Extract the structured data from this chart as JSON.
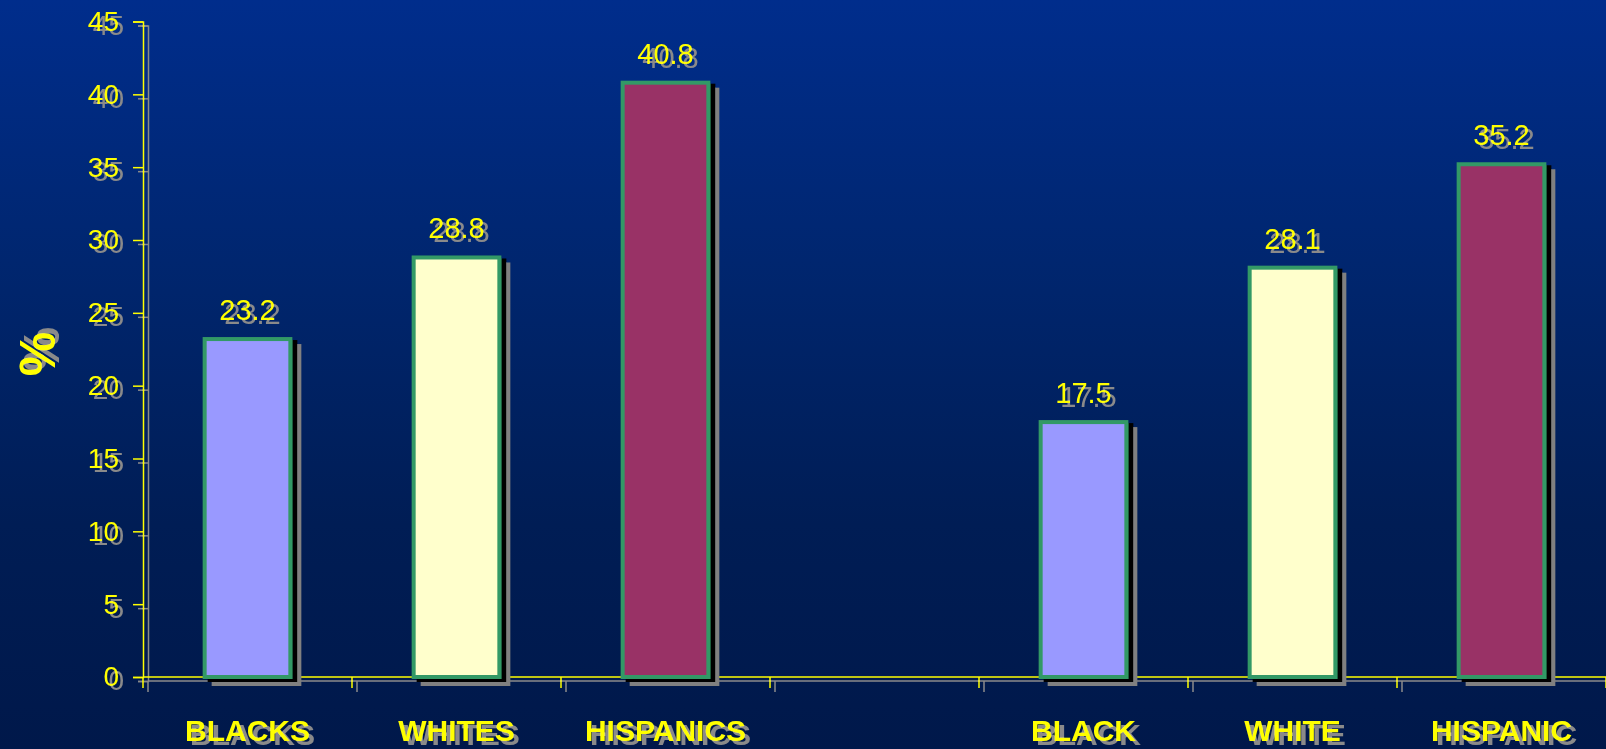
{
  "chart_data": {
    "type": "bar",
    "ylabel": "%",
    "categories": [
      "BLACKS",
      "WHITES",
      "HISPANICS",
      null,
      "BLACK",
      "WHITE",
      "HISPANIC"
    ],
    "values": [
      23.2,
      28.8,
      40.8,
      null,
      17.5,
      28.1,
      35.2
    ],
    "colors": [
      "#9999ff",
      "#ffffcc",
      "#993366",
      null,
      "#9999ff",
      "#ffffcc",
      "#993366"
    ],
    "ylim": [
      0,
      45
    ],
    "yticks": [
      0,
      5,
      10,
      15,
      20,
      25,
      30,
      35,
      40,
      45
    ],
    "data_labels": true
  }
}
